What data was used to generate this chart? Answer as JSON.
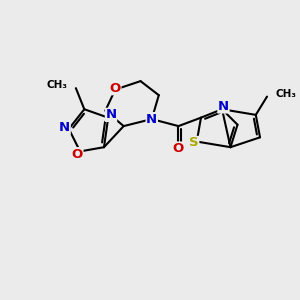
{
  "bg_color": "#ebebeb",
  "atom_colors": {
    "C": "#000000",
    "N": "#0000cc",
    "O": "#cc0000",
    "S": "#aaaa00"
  },
  "bond_color": "#000000",
  "bond_width": 1.5,
  "font_size_atom": 9.5
}
